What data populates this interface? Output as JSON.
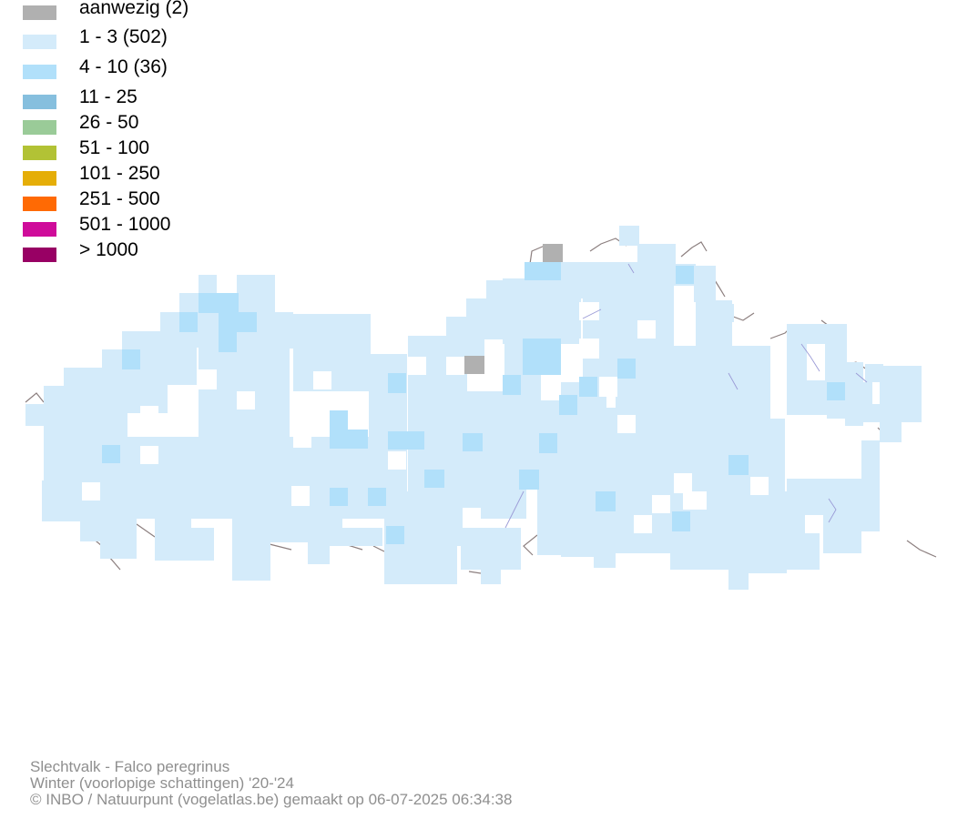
{
  "legend": {
    "items": [
      {
        "label": "aanwezig (2)",
        "color": "#b0b0b0"
      },
      {
        "label": "1 - 3 (502)",
        "color": "#d4ebfa"
      },
      {
        "label": "4 - 10 (36)",
        "color": "#b1e0fa"
      },
      {
        "label": "11 - 25",
        "color": "#86bfde"
      },
      {
        "label": "26 - 50",
        "color": "#9acb98"
      },
      {
        "label": "51 - 100",
        "color": "#b2c235"
      },
      {
        "label": "101 - 250",
        "color": "#e5ae08"
      },
      {
        "label": "251 - 500",
        "color": "#ff6a04"
      },
      {
        "label": "501 - 1000",
        "color": "#cf0c9a"
      },
      {
        "label": "> 1000",
        "color": "#980064"
      }
    ]
  },
  "map": {
    "cell_colors": {
      "low": "#d4ebfa",
      "medium": "#b1e0fa",
      "present": "#b0b0b0"
    },
    "border_color": "#8c7f7f",
    "river_color": "#9a9ad6"
  },
  "caption": {
    "species": "Slechtvalk - Falco peregrinus",
    "season": "Winter (voorlopige schattingen) '20-'24",
    "credit": "© INBO / Natuurpunt (vogelatlas.be) gemaakt op 06-07-2025 06:34:38"
  }
}
